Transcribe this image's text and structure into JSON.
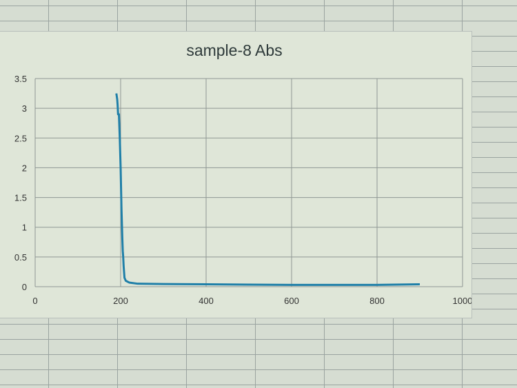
{
  "chart_data": {
    "type": "line",
    "title": "sample-8 Abs",
    "xlabel": "",
    "ylabel": "",
    "xlim": [
      0,
      1000
    ],
    "ylim": [
      0,
      3.5
    ],
    "xticks": [
      "0",
      "200",
      "400",
      "600",
      "800",
      "1000"
    ],
    "yticks": [
      "0",
      "0.5",
      "1",
      "1.5",
      "2",
      "2.5",
      "3",
      "3.5"
    ],
    "grid": true,
    "legend": "none",
    "line_color": "#1f7fa8",
    "series": [
      {
        "x": [
          190,
          192,
          193,
          194,
          196,
          198,
          200,
          202,
          204,
          205,
          206,
          207,
          209,
          212,
          220,
          240,
          300,
          400,
          500,
          600,
          700,
          800,
          900
        ],
        "y": [
          3.25,
          3.15,
          3.05,
          2.9,
          2.9,
          2.5,
          2.0,
          1.3,
          0.8,
          0.6,
          0.5,
          0.35,
          0.15,
          0.1,
          0.07,
          0.05,
          0.045,
          0.04,
          0.035,
          0.03,
          0.03,
          0.03,
          0.04
        ]
      }
    ]
  }
}
